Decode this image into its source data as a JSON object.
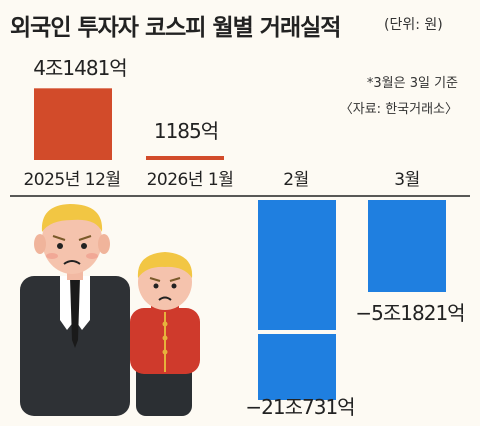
{
  "title": "외국인 투자자 코스피 월별 거래실적",
  "unit_note": "(단위: 원)",
  "notes": [
    "*3월은 3일 기준",
    "〈자료: 한국거래소〉"
  ],
  "colors": {
    "positive": "#d24b2a",
    "negative": "#1f7fe0",
    "axis": "#222222",
    "background": "#fdfaf3"
  },
  "illustration": {
    "description_icon": "two-worried-investors-icon"
  },
  "chart_data": {
    "type": "bar",
    "categories": [
      "2025년 12월",
      "2026년 1월",
      "2월",
      "3월"
    ],
    "values": [
      4.1481,
      0.1185,
      -21.0731,
      -5.1821
    ],
    "value_unit": "조원",
    "data_labels": [
      "4조1481억",
      "1185억",
      "−21조731억",
      "−5조1821억"
    ],
    "axis_break_on_negative": true,
    "title": "외국인 투자자 코스피 월별 거래실적",
    "xlabel": "",
    "ylabel": "",
    "grid": false,
    "legend": "none"
  }
}
